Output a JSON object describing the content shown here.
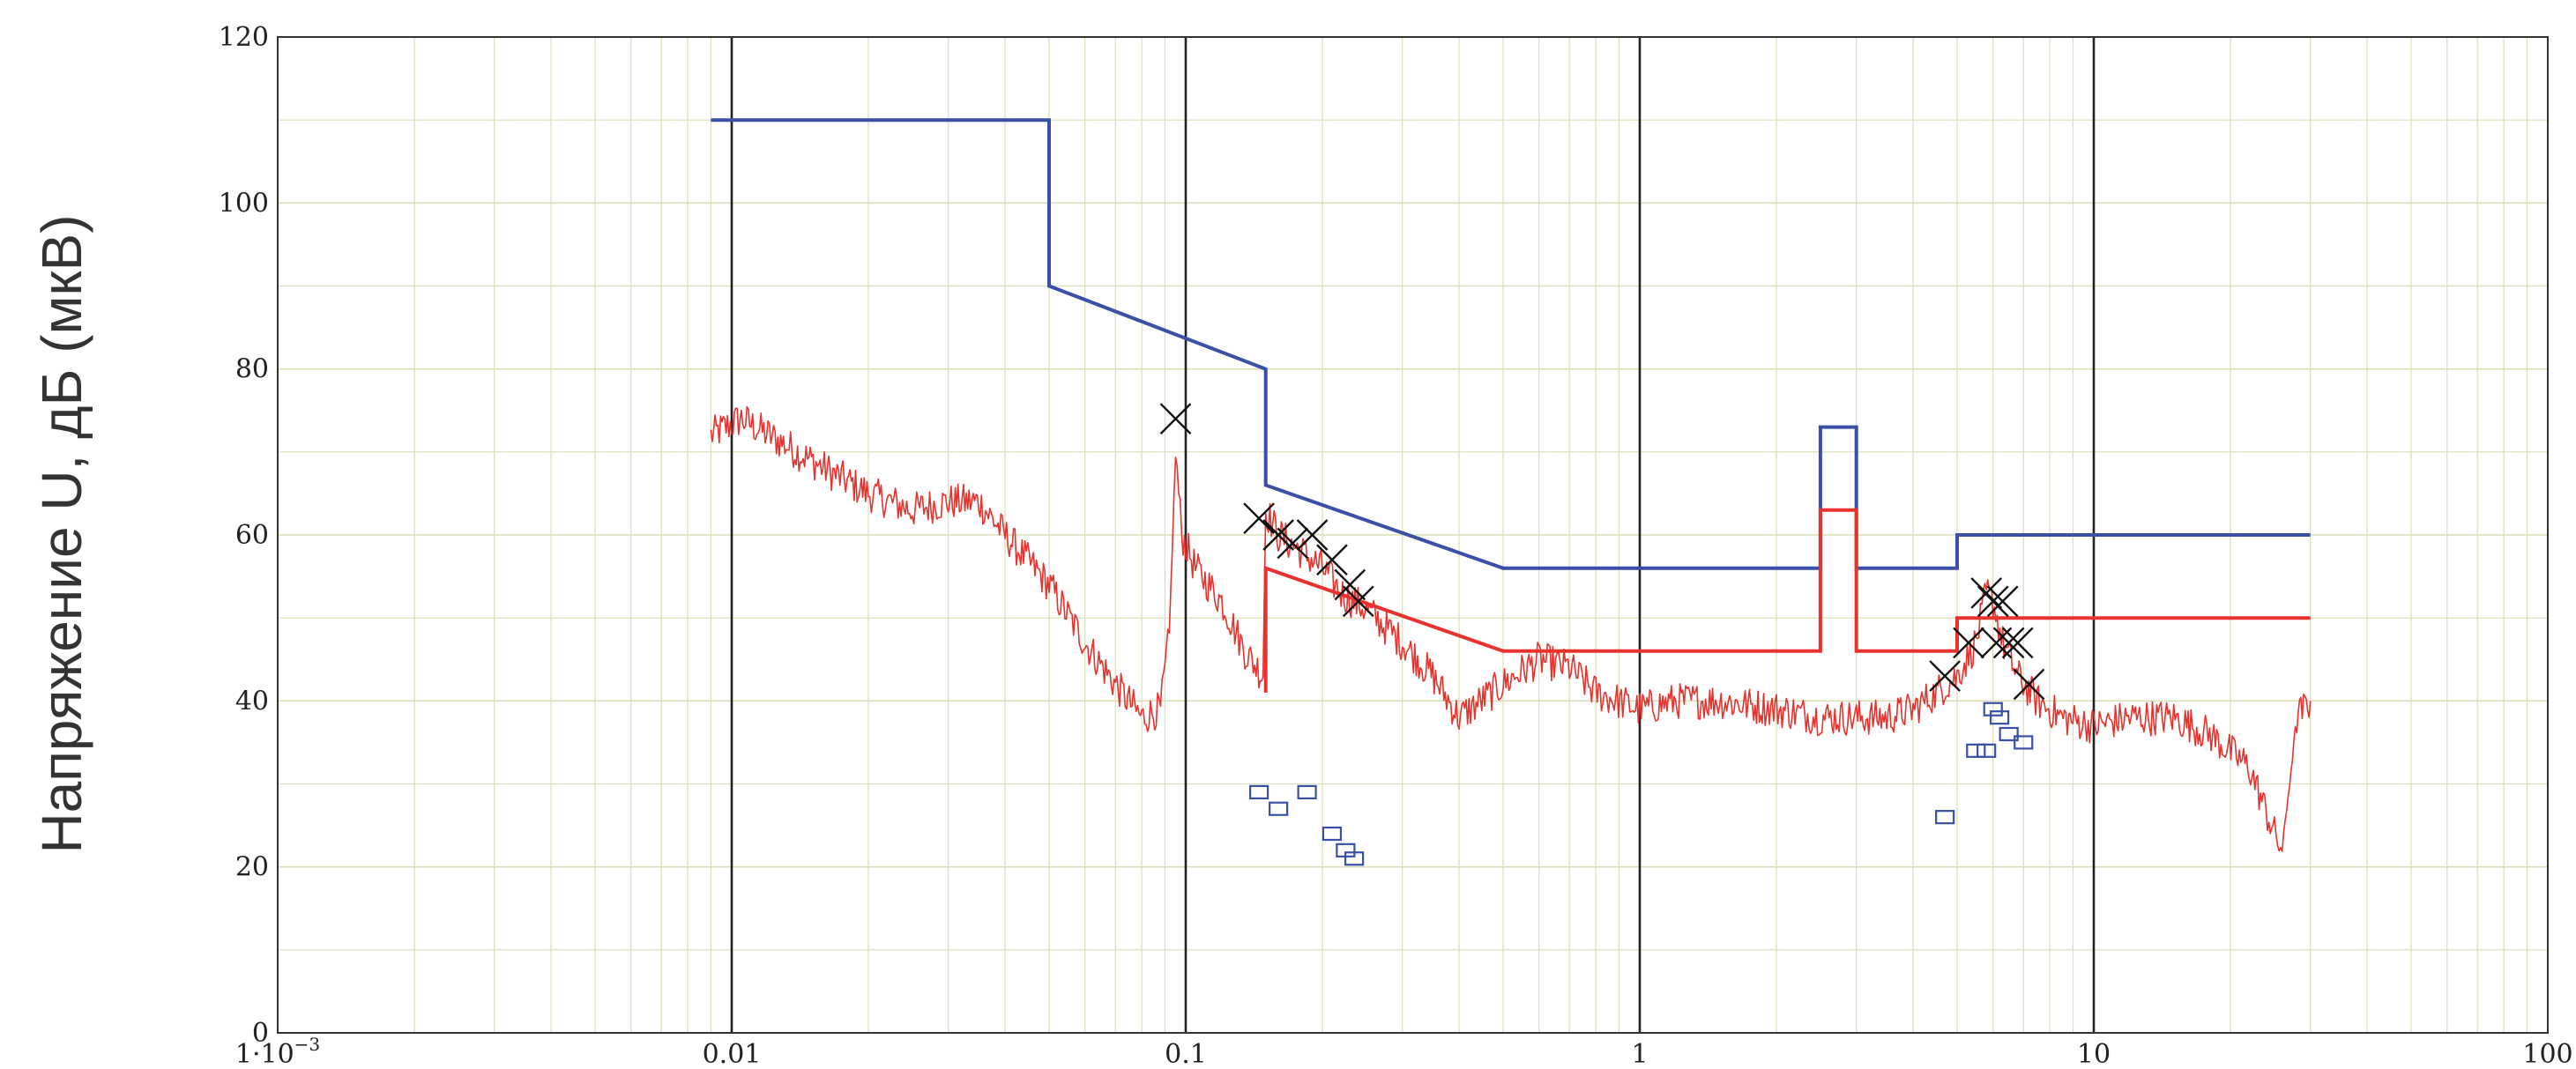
{
  "chart_data": {
    "type": "line",
    "title": "",
    "xlabel": "",
    "ylabel": "Напряжение U, дБ (мкВ)",
    "x_scale": "log",
    "xlim": [
      0.001,
      100
    ],
    "ylim": [
      0,
      120
    ],
    "y_ticks": [
      0,
      20,
      40,
      60,
      80,
      100,
      120
    ],
    "x_ticks": [
      {
        "value": 0.001,
        "label": "1·10",
        "sup": "−3"
      },
      {
        "value": 0.01,
        "label": "0.01",
        "sup": ""
      },
      {
        "value": 0.1,
        "label": "0.1",
        "sup": ""
      },
      {
        "value": 1,
        "label": "1",
        "sup": ""
      },
      {
        "value": 10,
        "label": "10",
        "sup": ""
      },
      {
        "value": 100,
        "label": "100",
        "sup": ""
      }
    ],
    "grid": true,
    "colors": {
      "limit_upper": "#3a4fa6",
      "limit_lower": "#e8322d",
      "measured": "#e8322d",
      "grid_minor": "#d9dfb8",
      "grid_major": "#222222",
      "markers": "#111111",
      "squares": "#3a4fa6"
    },
    "series": [
      {
        "key": "limit_upper",
        "style": "step",
        "x": [
          0.009,
          0.05,
          0.05,
          0.15,
          0.15,
          0.5,
          2.5,
          2.5,
          3.0,
          3.0,
          5.0,
          5.0,
          30
        ],
        "y": [
          110,
          110,
          90,
          80,
          66,
          56,
          56,
          73,
          73,
          56,
          56,
          60,
          60
        ]
      },
      {
        "key": "limit_lower",
        "style": "step",
        "x": [
          0.15,
          0.15,
          0.5,
          2.5,
          2.5,
          3.0,
          3.0,
          5.0,
          5.0,
          30
        ],
        "y": [
          41,
          56,
          46,
          46,
          63,
          63,
          46,
          46,
          50,
          50
        ]
      },
      {
        "key": "measured",
        "style": "noisy",
        "x": [
          0.009,
          0.0105,
          0.013,
          0.016,
          0.02,
          0.025,
          0.03,
          0.035,
          0.04,
          0.05,
          0.06,
          0.07,
          0.08,
          0.088,
          0.092,
          0.095,
          0.098,
          0.105,
          0.12,
          0.135,
          0.148,
          0.15,
          0.16,
          0.18,
          0.2,
          0.22,
          0.25,
          0.3,
          0.35,
          0.4,
          0.5,
          0.6,
          0.7,
          0.8,
          1.0,
          1.2,
          1.5,
          2.0,
          2.5,
          3.0,
          3.5,
          4.0,
          4.5,
          5.0,
          5.5,
          5.8,
          6.0,
          6.3,
          6.8,
          7.5,
          8.5,
          10,
          12,
          15,
          18,
          22,
          25,
          26,
          28,
          30
        ],
        "y": [
          72,
          74,
          71,
          68,
          65,
          63,
          64,
          64,
          60,
          54,
          47,
          42,
          38,
          39,
          48,
          70,
          60,
          56,
          52,
          46,
          43,
          63,
          60,
          58,
          56,
          53,
          51,
          47,
          43,
          38,
          42,
          45,
          44,
          41,
          39,
          40,
          40,
          39,
          38,
          38,
          38,
          39,
          41,
          43,
          47,
          53,
          52,
          47,
          43,
          40,
          38,
          37,
          38,
          38,
          36,
          32,
          24,
          22,
          38,
          40
        ]
      }
    ],
    "cross_markers": {
      "x": [
        0.095,
        0.145,
        0.16,
        0.172,
        0.19,
        0.21,
        0.23,
        0.24,
        4.7,
        5.3,
        5.8,
        6.0,
        6.3,
        6.1,
        6.5,
        6.8,
        7.2
      ],
      "y": [
        74,
        62,
        60,
        59,
        60,
        57,
        54,
        52,
        43,
        47,
        53,
        52,
        52,
        47,
        47,
        47,
        42
      ]
    },
    "square_markers": {
      "x": [
        0.145,
        0.16,
        0.185,
        0.21,
        0.225,
        0.235,
        4.7,
        5.5,
        5.8,
        6.0,
        6.2,
        6.5,
        7.0
      ],
      "y": [
        29,
        27,
        29,
        24,
        22,
        21,
        26,
        34,
        34,
        39,
        38,
        36,
        35
      ]
    }
  }
}
